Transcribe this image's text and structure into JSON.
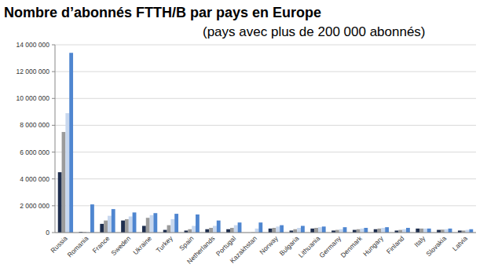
{
  "chart_data": {
    "type": "bar",
    "title": "Nombre d’abonnés FTTH/B par pays en Europe",
    "subtitle": "(pays avec plus de 200 000 abonnés)",
    "categories": [
      "Russia",
      "Romania",
      "France",
      "Sweden",
      "Ukraine",
      "Turkey",
      "Spain",
      "Netherlands",
      "Portugal",
      "Kazakhstan",
      "Norway",
      "Bulgaria",
      "Lithuania",
      "Germany",
      "Denmark",
      "Hungary",
      "Finland",
      "Italy",
      "Slovakia",
      "Latvia"
    ],
    "series": [
      {
        "color": "#1f2f4f",
        "values": [
          4500000,
          50000,
          650000,
          900000,
          500000,
          200000,
          150000,
          250000,
          250000,
          0,
          300000,
          150000,
          300000,
          150000,
          200000,
          250000,
          150000,
          300000,
          200000,
          150000
        ]
      },
      {
        "color": "#9b9b9b",
        "values": [
          7500000,
          50000,
          900000,
          1000000,
          1100000,
          550000,
          250000,
          350000,
          350000,
          20000,
          350000,
          250000,
          350000,
          200000,
          250000,
          300000,
          200000,
          300000,
          220000,
          150000
        ]
      },
      {
        "color": "#c7d7ee",
        "values": [
          8900000,
          50000,
          1250000,
          1200000,
          1300000,
          1000000,
          500000,
          500000,
          550000,
          300000,
          450000,
          350000,
          400000,
          250000,
          300000,
          350000,
          250000,
          300000,
          250000,
          200000
        ]
      },
      {
        "color": "#4f86d0",
        "values": [
          13400000,
          2100000,
          1750000,
          1500000,
          1450000,
          1400000,
          1350000,
          900000,
          750000,
          750000,
          550000,
          500000,
          450000,
          400000,
          350000,
          400000,
          350000,
          300000,
          300000,
          250000
        ]
      }
    ],
    "ylim": [
      0,
      14000000
    ],
    "yticks": [
      0,
      {
        "value": 2000000,
        "label": "2 000 000"
      },
      {
        "value": 4000000,
        "label": "4 000 000"
      },
      {
        "value": 6000000,
        "label": "6 000 000"
      },
      {
        "value": 8000000,
        "label": "8 000 000"
      },
      {
        "value": 10000000,
        "label": "10 000 000"
      },
      {
        "value": 12000000,
        "label": "12 000 000"
      },
      {
        "value": 14000000,
        "label": "14 000 000"
      }
    ],
    "grid": true
  }
}
